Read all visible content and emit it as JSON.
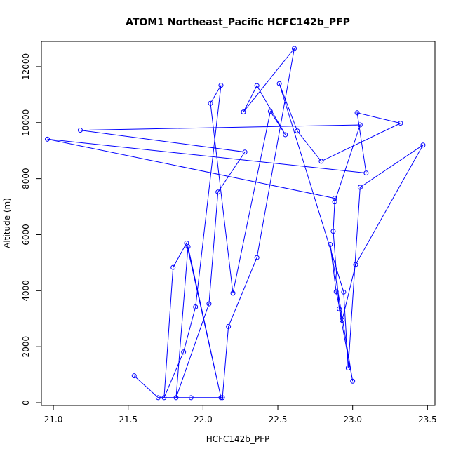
{
  "chart_data": {
    "type": "line",
    "title": "ATOM1 Northeast_Pacific HCFC142b_PFP",
    "xlabel": "HCFC142b_PFP",
    "ylabel": "Altitude (m)",
    "xlim": [
      20.92,
      23.55
    ],
    "ylim": [
      -100,
      12900
    ],
    "xticks": [
      21.0,
      21.5,
      22.0,
      22.5,
      23.0,
      23.5
    ],
    "xtick_labels": [
      "21.0",
      "21.5",
      "22.0",
      "22.5",
      "23.0",
      "23.5"
    ],
    "yticks": [
      0,
      2000,
      4000,
      6000,
      8000,
      10000,
      12000
    ],
    "ytick_labels": [
      "0",
      "2000",
      "4000",
      "6000",
      "8000",
      "10000",
      "12000"
    ],
    "grid": false,
    "color": "#0000FF",
    "marker": "open-circle",
    "series": [
      {
        "x": [
          21.54,
          21.7,
          21.92,
          22.13,
          22.17,
          22.36,
          22.61,
          22.27,
          22.36,
          22.55,
          22.45,
          22.2,
          22.05,
          22.12,
          21.95,
          21.87,
          21.74,
          21.8,
          21.89,
          22.12,
          21.9,
          21.82,
          22.04,
          22.1,
          22.28,
          21.18,
          23.05,
          22.88,
          22.87,
          22.91,
          23.0,
          22.85,
          22.89,
          22.93,
          23.02,
          23.47,
          23.05,
          22.97,
          22.94,
          22.51,
          22.63,
          22.79,
          23.32,
          23.03,
          23.09,
          20.96,
          22.88
        ],
        "y": [
          960,
          180,
          180,
          180,
          2720,
          5180,
          12650,
          10380,
          11320,
          9570,
          10400,
          3910,
          10690,
          11330,
          3420,
          1810,
          180,
          4830,
          5700,
          180,
          5570,
          180,
          3530,
          7520,
          8950,
          9730,
          9920,
          7170,
          6120,
          3350,
          770,
          5650,
          3960,
          2940,
          4930,
          9200,
          7690,
          1240,
          3950,
          11390,
          9700,
          8620,
          9980,
          10350,
          8200,
          9410,
          7300
        ]
      }
    ]
  }
}
